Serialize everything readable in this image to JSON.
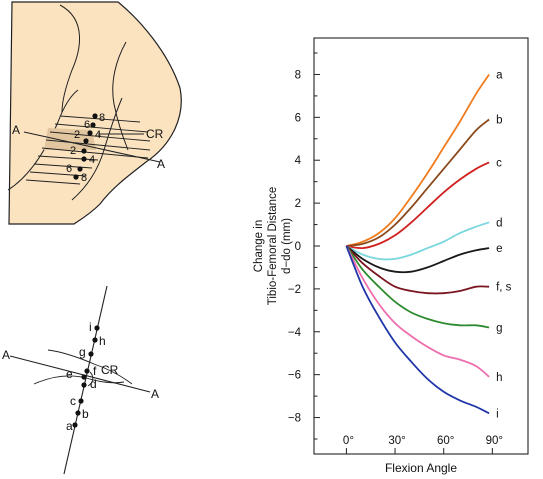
{
  "knee_diagram": {
    "line_label_start": "A",
    "line_label_end": "A",
    "center_label": "CR",
    "upper_numbers": [
      "8",
      "6",
      "4",
      "2"
    ],
    "lower_numbers": [
      "2",
      "4",
      "6",
      "8"
    ],
    "colors": {
      "femur_fill": "#fbe3c0",
      "outline": "#222222",
      "highlight": "#e2c6a0"
    }
  },
  "point_diagram": {
    "line_label_start": "A",
    "line_label_end": "A",
    "center_label": "CR",
    "points": [
      "i",
      "h",
      "g",
      "f",
      "e",
      "d",
      "c",
      "b",
      "a"
    ]
  },
  "chart_data": {
    "type": "line",
    "title": "",
    "xlabel": "Flexion Angle",
    "ylabel_lines": [
      "Change in",
      "Tibio-Femoral Distance",
      "d−do (mm)"
    ],
    "x_ticks": [
      0,
      30,
      60,
      90
    ],
    "x_tick_labels": [
      "0°",
      "30°",
      "60°",
      "90°"
    ],
    "xlim": [
      -20,
      112
    ],
    "y_ticks": [
      8,
      6,
      4,
      2,
      0,
      -2,
      -4,
      -6,
      -8
    ],
    "y_tick_labels": [
      "8",
      "6",
      "4",
      "2",
      "0",
      "−2",
      "−4",
      "−6",
      "−8"
    ],
    "ylim": [
      -9.7,
      9.7
    ],
    "grid": false,
    "legend": "end-of-line labels",
    "series": [
      {
        "name": "a",
        "color": "#f07c1e",
        "x": [
          0,
          10,
          20,
          30,
          40,
          50,
          60,
          70,
          80,
          88
        ],
        "y": [
          0,
          0.2,
          0.6,
          1.3,
          2.3,
          3.4,
          4.6,
          5.8,
          7.1,
          8.0
        ]
      },
      {
        "name": "b",
        "color": "#8a4a1c",
        "x": [
          0,
          10,
          20,
          30,
          40,
          50,
          60,
          70,
          80,
          88
        ],
        "y": [
          0,
          0.1,
          0.4,
          1.0,
          1.8,
          2.7,
          3.6,
          4.5,
          5.4,
          5.9
        ]
      },
      {
        "name": "c",
        "color": "#d01f1f",
        "x": [
          0,
          10,
          20,
          30,
          40,
          50,
          60,
          70,
          80,
          88
        ],
        "y": [
          0,
          -0.1,
          0.1,
          0.5,
          1.1,
          1.8,
          2.5,
          3.1,
          3.6,
          3.9
        ]
      },
      {
        "name": "d",
        "color": "#7ad7de",
        "x": [
          0,
          10,
          20,
          30,
          40,
          50,
          60,
          70,
          80,
          88
        ],
        "y": [
          0,
          -0.4,
          -0.6,
          -0.6,
          -0.4,
          -0.1,
          0.2,
          0.6,
          0.9,
          1.1
        ]
      },
      {
        "name": "e",
        "color": "#1a1a1a",
        "x": [
          0,
          10,
          20,
          30,
          40,
          50,
          60,
          70,
          80,
          88
        ],
        "y": [
          0,
          -0.6,
          -1.0,
          -1.2,
          -1.2,
          -1.0,
          -0.7,
          -0.4,
          -0.2,
          -0.1
        ]
      },
      {
        "name": "f, s",
        "color": "#7a1620",
        "x": [
          0,
          10,
          20,
          30,
          40,
          50,
          60,
          70,
          80,
          88
        ],
        "y": [
          0,
          -0.8,
          -1.4,
          -1.9,
          -2.1,
          -2.2,
          -2.2,
          -2.1,
          -1.9,
          -1.9
        ]
      },
      {
        "name": "g",
        "color": "#2e8a2e",
        "x": [
          0,
          10,
          20,
          30,
          40,
          50,
          60,
          70,
          80,
          88
        ],
        "y": [
          0,
          -1.1,
          -1.9,
          -2.6,
          -3.1,
          -3.4,
          -3.6,
          -3.7,
          -3.7,
          -3.8
        ]
      },
      {
        "name": "h",
        "color": "#ef6fae",
        "x": [
          0,
          10,
          20,
          30,
          40,
          50,
          60,
          70,
          80,
          88
        ],
        "y": [
          0,
          -1.5,
          -2.7,
          -3.6,
          -4.2,
          -4.7,
          -5.1,
          -5.3,
          -5.6,
          -6.1
        ]
      },
      {
        "name": "i",
        "color": "#2036a8",
        "x": [
          0,
          10,
          20,
          30,
          40,
          50,
          60,
          70,
          80,
          88
        ],
        "y": [
          0,
          -1.9,
          -3.3,
          -4.5,
          -5.4,
          -6.2,
          -6.8,
          -7.2,
          -7.5,
          -7.8
        ]
      }
    ]
  }
}
